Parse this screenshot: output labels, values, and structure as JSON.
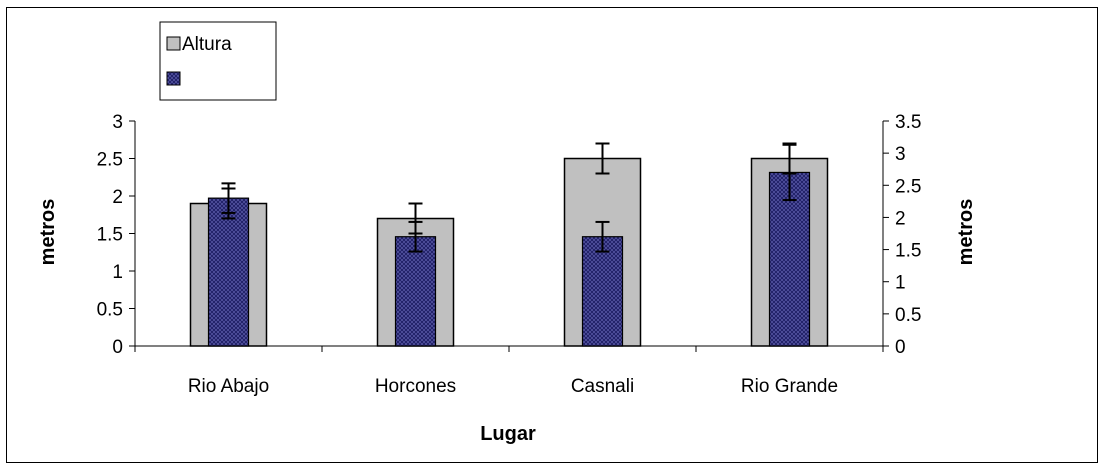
{
  "chart_data": {
    "type": "bar",
    "title": "",
    "xlabel": "Lugar",
    "ylabel": "metros",
    "y2label": "metros",
    "categories": [
      "Rio Abajo",
      "Horcones",
      "Casnali",
      "Rio Grande"
    ],
    "ylim": [
      0,
      3
    ],
    "y2lim": [
      0,
      3.5
    ],
    "yticks": [
      "0",
      "0.5",
      "1",
      "1.5",
      "2",
      "2.5",
      "3"
    ],
    "y2ticks": [
      "0",
      "0.5",
      "1",
      "1.5",
      "2",
      "2.5",
      "3",
      "3.5"
    ],
    "legend_position": "top-left",
    "series": [
      {
        "name": "Altura",
        "axis": "left",
        "values": [
          1.9,
          1.7,
          2.5,
          2.5
        ],
        "errors": [
          0.2,
          0.2,
          0.2,
          0.2
        ],
        "color": "#c0c0c0",
        "pattern": "solid"
      },
      {
        "name": "",
        "axis": "right",
        "values": [
          2.3,
          1.7,
          1.7,
          2.7
        ],
        "errors": [
          0.23,
          0.23,
          0.23,
          0.43
        ],
        "color": "#333399",
        "pattern": "crosshatch"
      }
    ]
  }
}
